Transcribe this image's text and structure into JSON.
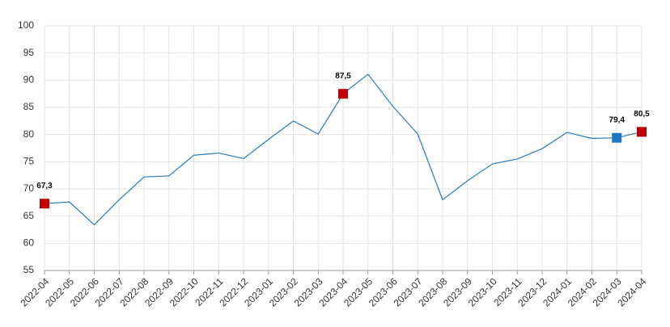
{
  "chart_data": {
    "type": "line",
    "categories": [
      "2022-04",
      "2022-05",
      "2022-06",
      "2022-07",
      "2022-08",
      "2022-09",
      "2022-10",
      "2022-11",
      "2022-12",
      "2023-01",
      "2023-02",
      "2023-03",
      "2023-04",
      "2023-05",
      "2023-06",
      "2023-07",
      "2023-08",
      "2023-09",
      "2023-10",
      "2023-11",
      "2023-12",
      "2024-01",
      "2024-02",
      "2024-03",
      "2024-04"
    ],
    "values": [
      67.3,
      67.6,
      63.4,
      68.0,
      72.2,
      72.4,
      76.2,
      76.6,
      75.6,
      79.1,
      82.5,
      80.1,
      87.5,
      91.1,
      85.2,
      80.1,
      68.0,
      71.5,
      74.6,
      75.5,
      77.4,
      80.4,
      79.3,
      79.4,
      80.5
    ],
    "value_labels": [
      "67,3",
      null,
      null,
      null,
      null,
      null,
      null,
      null,
      null,
      null,
      null,
      null,
      "87,5",
      null,
      null,
      null,
      null,
      null,
      null,
      null,
      null,
      null,
      null,
      "79,4",
      "80,5"
    ],
    "marker_colors": [
      "#c00000",
      null,
      null,
      null,
      null,
      null,
      null,
      null,
      null,
      null,
      null,
      null,
      "#c00000",
      null,
      null,
      null,
      null,
      null,
      null,
      null,
      null,
      null,
      null,
      "#1f77c4",
      "#c00000"
    ],
    "color": "#2a7ab9",
    "ylim": [
      55,
      100
    ],
    "yticks": [
      55,
      60,
      65,
      70,
      75,
      80,
      85,
      90,
      95,
      100
    ],
    "grid": true
  }
}
